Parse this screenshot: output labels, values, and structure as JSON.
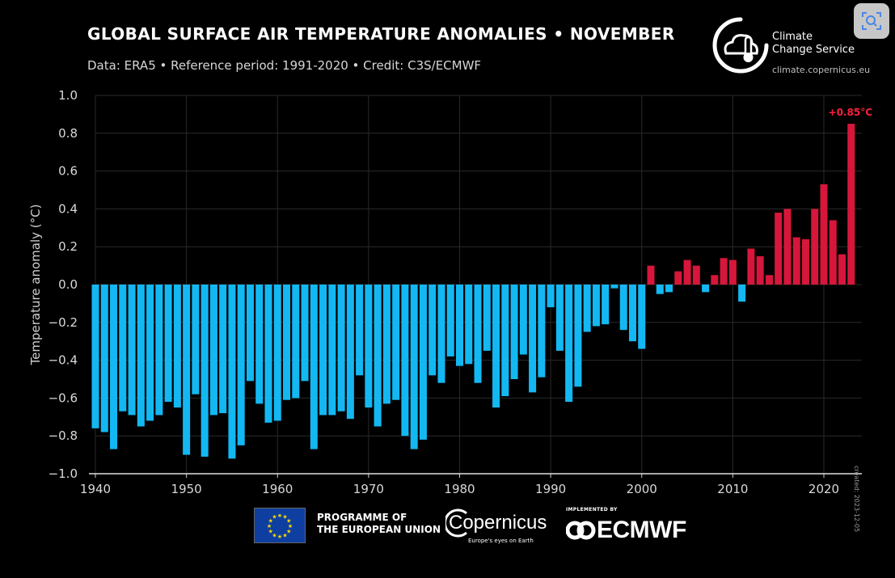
{
  "header": {
    "title": "GLOBAL SURFACE AIR TEMPERATURE ANOMALIES • NOVEMBER",
    "subtitle": "Data: ERA5 • Reference period: 1991-2020 • Credit: C3S/ECMWF"
  },
  "logo": {
    "line1": "Climate",
    "line2": "Change Service",
    "url": "climate.copernicus.eu",
    "icon": "cloud-thermometer-icon"
  },
  "footer": {
    "eu_line1": "PROGRAMME OF",
    "eu_line2": "THE EUROPEAN UNION",
    "copernicus_word": "Copernicus",
    "copernicus_tagline": "Europe's eyes on Earth",
    "ecmwf_implemented": "IMPLEMENTED BY",
    "ecmwf_word": "ECMWF",
    "created": "created: 2023-12-05"
  },
  "colors": {
    "negative": "#13b8f2",
    "positive": "#d6163a",
    "background": "#000000",
    "grid": "#2a2a2a",
    "annotation": "#ff1f3d"
  },
  "corner_button": {
    "icon": "screen-search-icon"
  },
  "chart_data": {
    "type": "bar",
    "title": "GLOBAL SURFACE AIR TEMPERATURE ANOMALIES • NOVEMBER",
    "ylabel": "Temperature anomaly (°C)",
    "xlabel": "",
    "ylim": [
      -1.0,
      1.0
    ],
    "xlim": [
      1939,
      2024
    ],
    "yticks": [
      "1.0",
      "0.8",
      "0.6",
      "0.4",
      "0.2",
      "0.0",
      "−0.2",
      "−0.4",
      "−0.6",
      "−0.8",
      "−1.0"
    ],
    "ytick_values": [
      1.0,
      0.8,
      0.6,
      0.4,
      0.2,
      0.0,
      -0.2,
      -0.4,
      -0.6,
      -0.8,
      -1.0
    ],
    "xticks": [
      "1940",
      "1950",
      "1960",
      "1970",
      "1980",
      "1990",
      "2000",
      "2010",
      "2020"
    ],
    "xtick_values": [
      1940,
      1950,
      1960,
      1970,
      1980,
      1990,
      2000,
      2010,
      2020
    ],
    "grid": true,
    "annotation": {
      "year": 2023,
      "text": "+0.85°C"
    },
    "years": [
      1940,
      1941,
      1942,
      1943,
      1944,
      1945,
      1946,
      1947,
      1948,
      1949,
      1950,
      1951,
      1952,
      1953,
      1954,
      1955,
      1956,
      1957,
      1958,
      1959,
      1960,
      1961,
      1962,
      1963,
      1964,
      1965,
      1966,
      1967,
      1968,
      1969,
      1970,
      1971,
      1972,
      1973,
      1974,
      1975,
      1976,
      1977,
      1978,
      1979,
      1980,
      1981,
      1982,
      1983,
      1984,
      1985,
      1986,
      1987,
      1988,
      1989,
      1990,
      1991,
      1992,
      1993,
      1994,
      1995,
      1996,
      1997,
      1998,
      1999,
      2000,
      2001,
      2002,
      2003,
      2004,
      2005,
      2006,
      2007,
      2008,
      2009,
      2010,
      2011,
      2012,
      2013,
      2014,
      2015,
      2016,
      2017,
      2018,
      2019,
      2020,
      2021,
      2022,
      2023
    ],
    "values": [
      -0.76,
      -0.78,
      -0.87,
      -0.67,
      -0.69,
      -0.75,
      -0.72,
      -0.69,
      -0.62,
      -0.65,
      -0.9,
      -0.58,
      -0.91,
      -0.69,
      -0.68,
      -0.92,
      -0.85,
      -0.51,
      -0.63,
      -0.73,
      -0.72,
      -0.61,
      -0.6,
      -0.51,
      -0.87,
      -0.69,
      -0.69,
      -0.67,
      -0.71,
      -0.48,
      -0.65,
      -0.75,
      -0.63,
      -0.61,
      -0.8,
      -0.87,
      -0.82,
      -0.48,
      -0.52,
      -0.38,
      -0.43,
      -0.42,
      -0.52,
      -0.35,
      -0.65,
      -0.59,
      -0.5,
      -0.37,
      -0.57,
      -0.49,
      -0.12,
      -0.35,
      -0.62,
      -0.54,
      -0.25,
      -0.22,
      -0.21,
      -0.02,
      -0.24,
      -0.3,
      -0.34,
      0.1,
      -0.05,
      -0.04,
      0.07,
      0.13,
      0.1,
      -0.04,
      0.05,
      0.14,
      0.13,
      -0.09,
      0.19,
      0.15,
      0.05,
      0.38,
      0.4,
      0.25,
      0.24,
      0.4,
      0.53,
      0.34,
      0.16,
      0.85
    ]
  }
}
